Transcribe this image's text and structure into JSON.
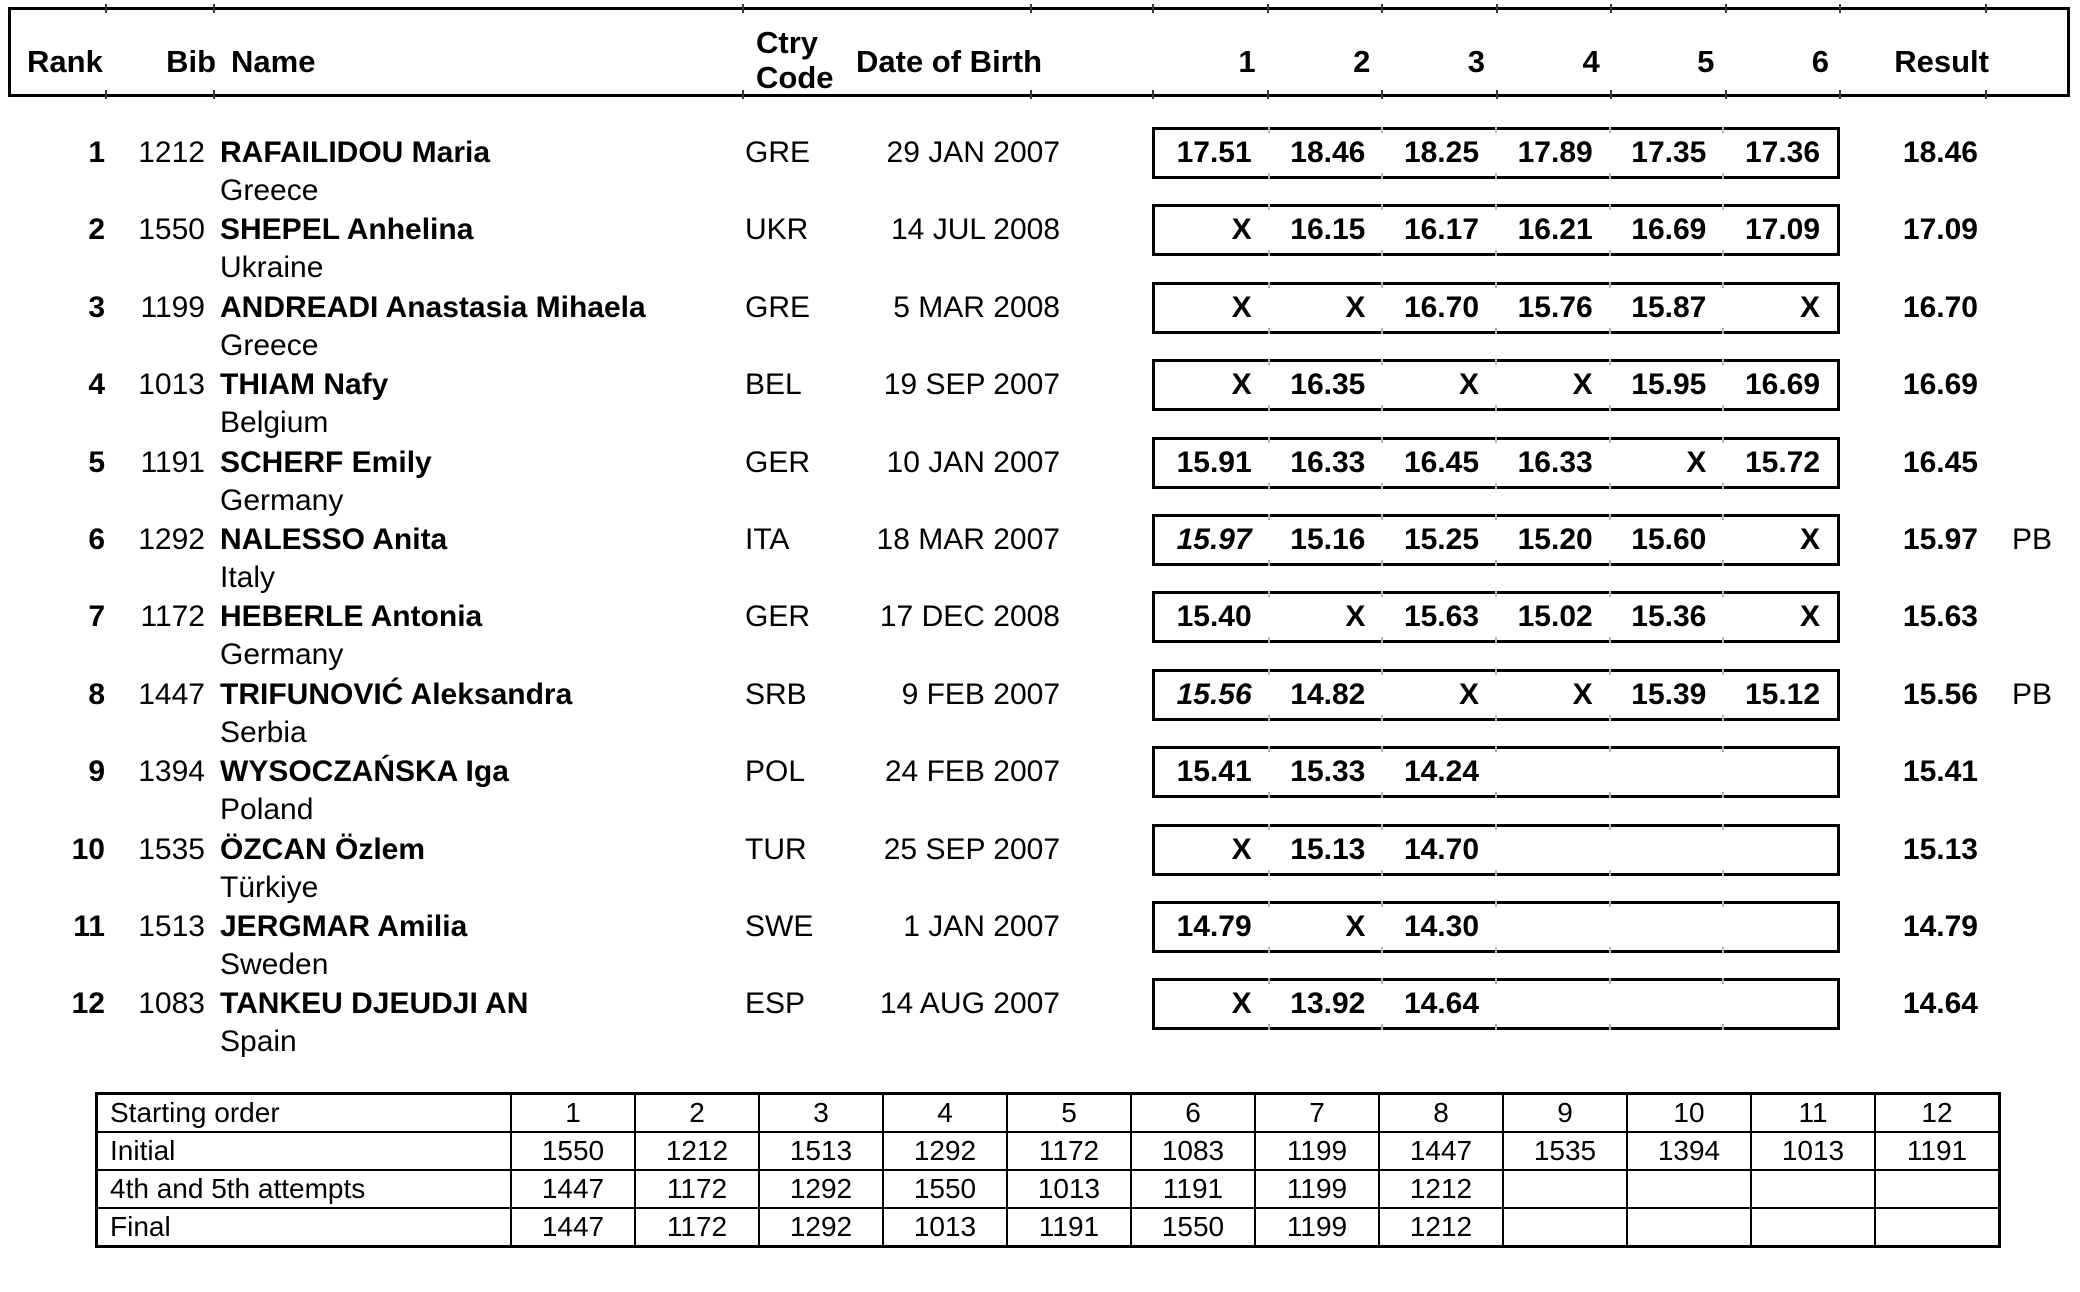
{
  "header": {
    "rank": "Rank",
    "bib": "Bib",
    "name": "Name",
    "ctry_code": "Ctry\nCode",
    "dob": "Date of Birth",
    "attempt_cols": [
      "1",
      "2",
      "3",
      "4",
      "5",
      "6"
    ],
    "result": "Result"
  },
  "athletes": [
    {
      "rank": "1",
      "bib": "1212",
      "name": "RAFAILIDOU Maria",
      "country": "Greece",
      "noc": "GRE",
      "dob": "29 JAN 2007",
      "attempts": [
        "17.51",
        "18.46",
        "18.25",
        "17.89",
        "17.35",
        "17.36"
      ],
      "italic_attempt": -1,
      "result": "18.46",
      "note": ""
    },
    {
      "rank": "2",
      "bib": "1550",
      "name": "SHEPEL Anhelina",
      "country": "Ukraine",
      "noc": "UKR",
      "dob": "14 JUL 2008",
      "attempts": [
        "X",
        "16.15",
        "16.17",
        "16.21",
        "16.69",
        "17.09"
      ],
      "italic_attempt": -1,
      "result": "17.09",
      "note": ""
    },
    {
      "rank": "3",
      "bib": "1199",
      "name": "ANDREADI Anastasia Mihaela",
      "country": "Greece",
      "noc": "GRE",
      "dob": "5 MAR 2008",
      "attempts": [
        "X",
        "X",
        "16.70",
        "15.76",
        "15.87",
        "X"
      ],
      "italic_attempt": -1,
      "result": "16.70",
      "note": ""
    },
    {
      "rank": "4",
      "bib": "1013",
      "name": "THIAM Nafy",
      "country": "Belgium",
      "noc": "BEL",
      "dob": "19 SEP 2007",
      "attempts": [
        "X",
        "16.35",
        "X",
        "X",
        "15.95",
        "16.69"
      ],
      "italic_attempt": -1,
      "result": "16.69",
      "note": ""
    },
    {
      "rank": "5",
      "bib": "1191",
      "name": "SCHERF Emily",
      "country": "Germany",
      "noc": "GER",
      "dob": "10 JAN 2007",
      "attempts": [
        "15.91",
        "16.33",
        "16.45",
        "16.33",
        "X",
        "15.72"
      ],
      "italic_attempt": -1,
      "result": "16.45",
      "note": ""
    },
    {
      "rank": "6",
      "bib": "1292",
      "name": "NALESSO Anita",
      "country": "Italy",
      "noc": "ITA",
      "dob": "18 MAR 2007",
      "attempts": [
        "15.97",
        "15.16",
        "15.25",
        "15.20",
        "15.60",
        "X"
      ],
      "italic_attempt": 0,
      "result": "15.97",
      "note": "PB"
    },
    {
      "rank": "7",
      "bib": "1172",
      "name": "HEBERLE Antonia",
      "country": "Germany",
      "noc": "GER",
      "dob": "17 DEC 2008",
      "attempts": [
        "15.40",
        "X",
        "15.63",
        "15.02",
        "15.36",
        "X"
      ],
      "italic_attempt": -1,
      "result": "15.63",
      "note": ""
    },
    {
      "rank": "8",
      "bib": "1447",
      "name": "TRIFUNOVIĆ Aleksandra",
      "country": "Serbia",
      "noc": "SRB",
      "dob": "9 FEB 2007",
      "attempts": [
        "15.56",
        "14.82",
        "X",
        "X",
        "15.39",
        "15.12"
      ],
      "italic_attempt": 0,
      "result": "15.56",
      "note": "PB"
    },
    {
      "rank": "9",
      "bib": "1394",
      "name": "WYSOCZAŃSKA Iga",
      "country": "Poland",
      "noc": "POL",
      "dob": "24 FEB 2007",
      "attempts": [
        "15.41",
        "15.33",
        "14.24",
        "",
        "",
        ""
      ],
      "italic_attempt": -1,
      "result": "15.41",
      "note": ""
    },
    {
      "rank": "10",
      "bib": "1535",
      "name": "ÖZCAN Özlem",
      "country": "Türkiye",
      "noc": "TUR",
      "dob": "25 SEP 2007",
      "attempts": [
        "X",
        "15.13",
        "14.70",
        "",
        "",
        ""
      ],
      "italic_attempt": -1,
      "result": "15.13",
      "note": ""
    },
    {
      "rank": "11",
      "bib": "1513",
      "name": "JERGMAR Amilia",
      "country": "Sweden",
      "noc": "SWE",
      "dob": "1 JAN 2007",
      "attempts": [
        "14.79",
        "X",
        "14.30",
        "",
        "",
        ""
      ],
      "italic_attempt": -1,
      "result": "14.79",
      "note": ""
    },
    {
      "rank": "12",
      "bib": "1083",
      "name": "TANKEU DJEUDJI AN",
      "country": "Spain",
      "noc": "ESP",
      "dob": "14 AUG 2007",
      "attempts": [
        "X",
        "13.92",
        "14.64",
        "",
        "",
        ""
      ],
      "italic_attempt": -1,
      "result": "14.64",
      "note": ""
    }
  ],
  "starting_order_table": {
    "header_label": "Starting order",
    "positions": [
      "1",
      "2",
      "3",
      "4",
      "5",
      "6",
      "7",
      "8",
      "9",
      "10",
      "11",
      "12"
    ],
    "rows": [
      {
        "label": "Initial",
        "bibs": [
          "1550",
          "1212",
          "1513",
          "1292",
          "1172",
          "1083",
          "1199",
          "1447",
          "1535",
          "1394",
          "1013",
          "1191"
        ]
      },
      {
        "label": "4th and 5th attempts",
        "bibs": [
          "1447",
          "1172",
          "1292",
          "1550",
          "1013",
          "1191",
          "1199",
          "1212",
          "",
          "",
          "",
          ""
        ]
      },
      {
        "label": "Final",
        "bibs": [
          "1447",
          "1172",
          "1292",
          "1013",
          "1191",
          "1550",
          "1199",
          "1212",
          "",
          "",
          "",
          ""
        ]
      }
    ]
  }
}
